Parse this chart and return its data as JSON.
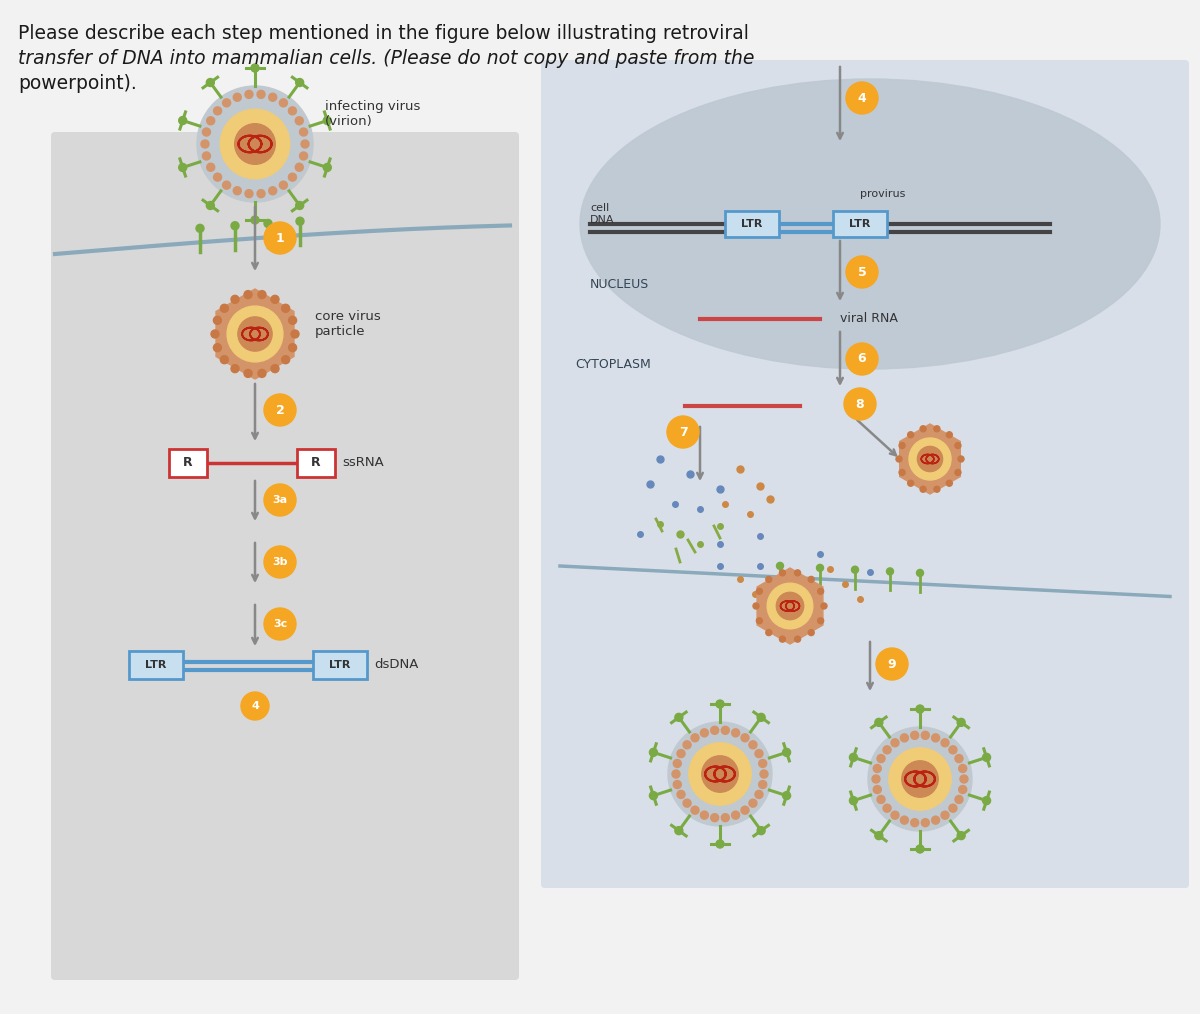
{
  "bg_color": "#f2f2f2",
  "title_text_line1": "Please describe each step mentioned in the figure below illustrating retroviral",
  "title_text_line2": "transfer of DNA into mammalian cells. (Please do not copy and paste from the",
  "title_text_line3": "powerpoint).",
  "title_fontsize": 13.5,
  "title_color": "#1a1a1a",
  "orange_badge_color": "#F5A623",
  "badge_text_color": "#ffffff",
  "arrow_color": "#888888",
  "left_panel_color": "#d8d8d8",
  "right_panel_color": "#d8dfe8",
  "nucleus_color": "#bec9d4",
  "cell_mem_color": "#8aaabb",
  "spike_color": "#7aaa44",
  "dot_color_orange": "#d4946a",
  "inner_color": "#f0cc77",
  "core_outer_color": "#d4946a",
  "rna_red": "#cc3333",
  "ltr_box_bg": "#c8dff0",
  "ltr_box_border": "#5599cc",
  "r_box_border": "#cc3333",
  "dna_dark": "#444444",
  "dna_blue": "#5599cc",
  "viral_rna_color": "#cc4444",
  "dot_blue": "#7788aa",
  "dot_green": "#88aa55",
  "dot_red": "#cc7755",
  "labels": {
    "infecting_virus": "infecting virus\n(virion)",
    "core_virus": "core virus\nparticle",
    "ssRNA": "ssRNA",
    "dsDNA": "dsDNA",
    "cell_DNA": "cell\nDNA",
    "provirus": "provirus",
    "NUCLEUS": "NUCLEUS",
    "CYTOPLASM": "CYTOPLASM",
    "viral_RNA": "viral RNA"
  }
}
